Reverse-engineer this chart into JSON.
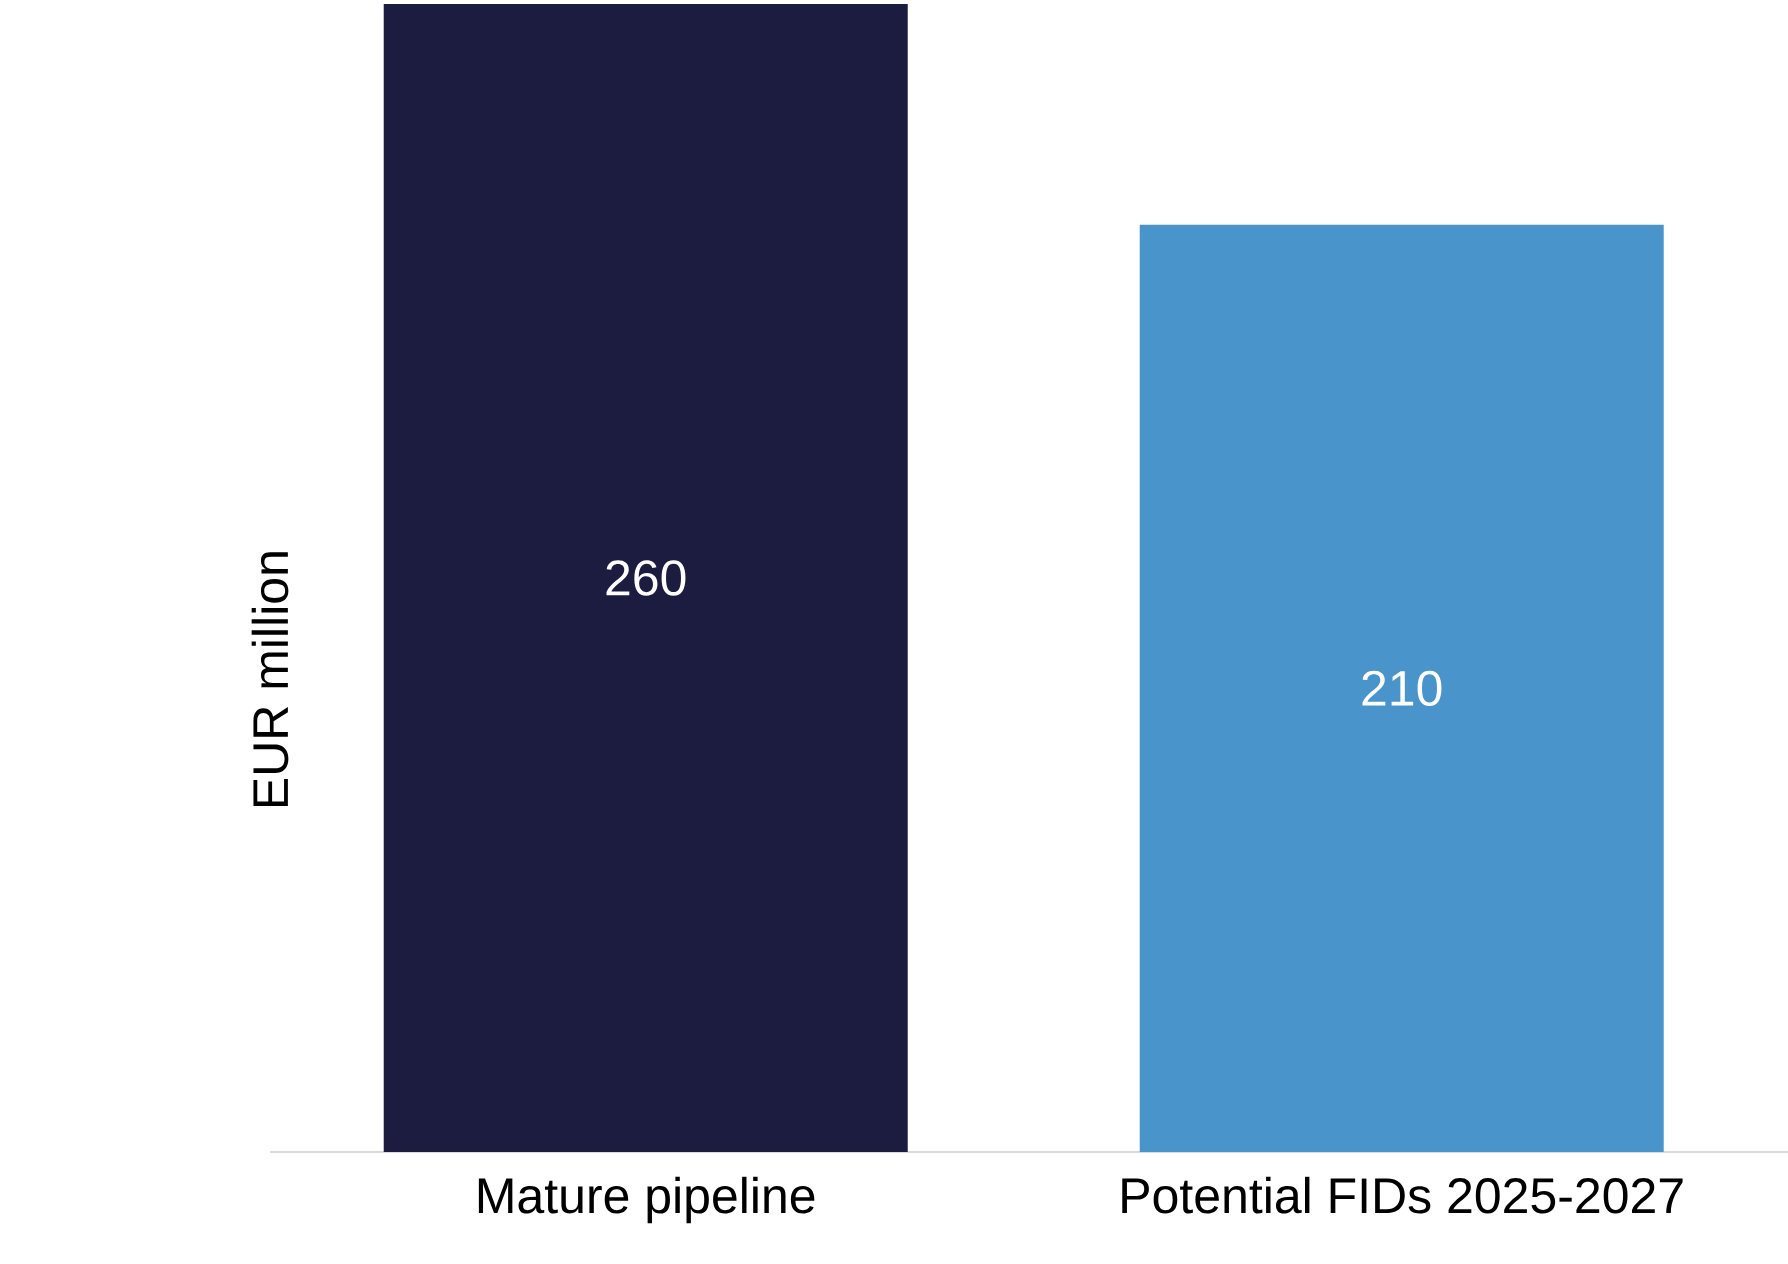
{
  "chart_data": {
    "type": "bar",
    "ylabel": "EUR million",
    "categories": [
      "Mature pipeline",
      "Potential FIDs 2025-2027"
    ],
    "values": [
      260,
      210
    ],
    "colors": [
      "#1b1c40",
      "#4a94cc"
    ],
    "data_labels": true
  }
}
